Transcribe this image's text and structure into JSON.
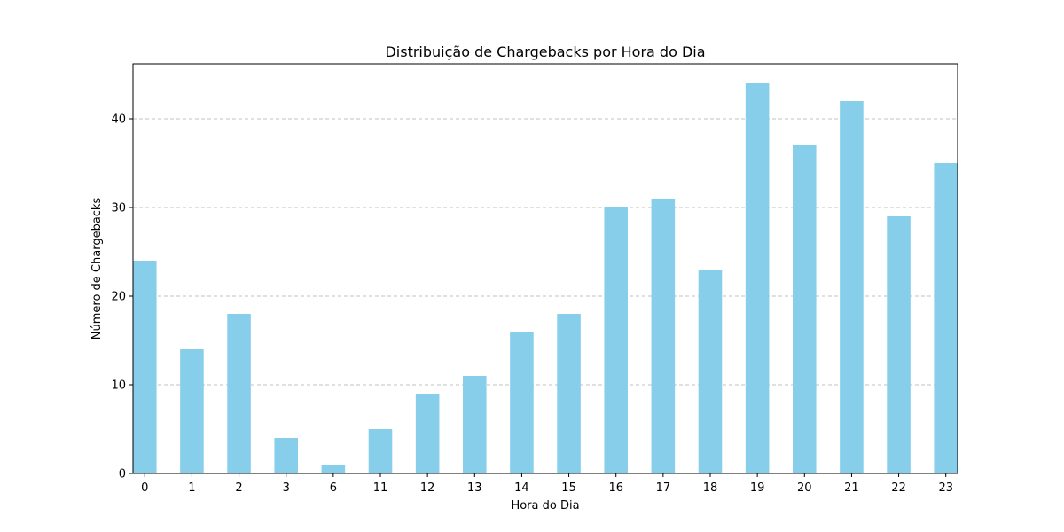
{
  "chart_data": {
    "type": "bar",
    "title": "Distribuição de Chargebacks por Hora do Dia",
    "xlabel": "Hora do Dia",
    "ylabel": "Número de Chargebacks",
    "categories": [
      "0",
      "1",
      "2",
      "3",
      "6",
      "11",
      "12",
      "13",
      "14",
      "15",
      "16",
      "17",
      "18",
      "19",
      "20",
      "21",
      "22",
      "23"
    ],
    "values": [
      24,
      14,
      18,
      4,
      1,
      5,
      9,
      11,
      16,
      18,
      30,
      31,
      23,
      44,
      37,
      42,
      29,
      35
    ],
    "ylim": [
      0,
      46.2
    ],
    "yticks": [
      0,
      10,
      20,
      30,
      40
    ],
    "grid": "y-dashed",
    "bar_color": "#87ceeb",
    "grid_color": "#c0c0c0"
  }
}
